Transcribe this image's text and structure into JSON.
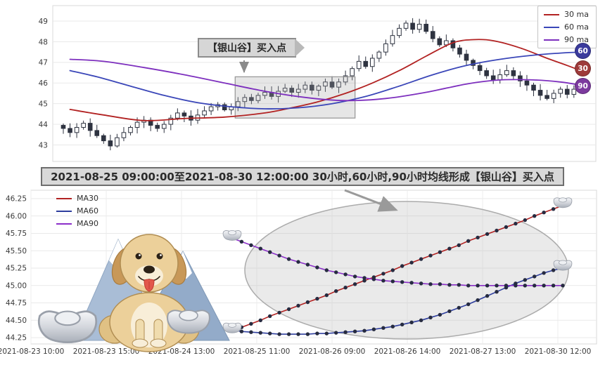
{
  "banner": {
    "text": "2021-08-25 09:00:00至2021-08-30 12:00:00 30小时,60小时,90小时均线形成【银山谷】买入点"
  },
  "top_chart": {
    "annotation": "【银山谷】买入点",
    "legend": [
      {
        "label": "30 ma",
        "color": "#b22222"
      },
      {
        "label": "60 ma",
        "color": "#3a46b8"
      },
      {
        "label": "90 ma",
        "color": "#7d2fbe"
      }
    ],
    "badges": [
      {
        "label": "60",
        "color": "#3a3a9d"
      },
      {
        "label": "30",
        "color": "#9e3a3a"
      },
      {
        "label": "90",
        "color": "#7c3a9e"
      }
    ]
  },
  "bottom_chart": {
    "legend": [
      {
        "label": "MA30",
        "color": "#b22222"
      },
      {
        "label": "MA60",
        "color": "#2e3e9e"
      },
      {
        "label": "MA90",
        "color": "#8b2fc9"
      }
    ]
  },
  "chart_data": [
    {
      "type": "candlestick",
      "panel": "top",
      "title": "",
      "yticks": [
        49,
        48,
        47,
        46,
        45,
        44,
        43
      ],
      "ylim": [
        42.2,
        49.75
      ],
      "grid": true,
      "legend_position": "upper-right",
      "candle_color_up": "#ffffff",
      "candle_color_down": "#2e3340",
      "closes": [
        43.8,
        43.6,
        43.85,
        44.05,
        43.7,
        43.45,
        43.2,
        42.95,
        43.35,
        43.6,
        43.85,
        44.1,
        44.2,
        43.95,
        43.8,
        44.0,
        44.3,
        44.55,
        44.4,
        44.2,
        44.45,
        44.65,
        44.85,
        44.95,
        44.7,
        44.85,
        45.1,
        45.3,
        45.15,
        45.4,
        45.55,
        45.35,
        45.6,
        45.75,
        45.55,
        45.7,
        45.9,
        45.65,
        45.85,
        46.05,
        45.8,
        46.05,
        46.35,
        46.7,
        47.05,
        46.8,
        47.2,
        47.5,
        47.9,
        48.3,
        48.65,
        48.9,
        48.6,
        48.85,
        48.5,
        48.15,
        47.85,
        48.05,
        47.7,
        47.4,
        47.1,
        46.85,
        46.6,
        46.35,
        46.15,
        46.4,
        46.6,
        46.35,
        46.1,
        45.9,
        45.65,
        45.4,
        45.25,
        45.5,
        45.7,
        45.45,
        45.7,
        45.95
      ],
      "ma_series": [
        {
          "name": "30 ma",
          "color": "#b22222",
          "points": [
            [
              1,
              44.72
            ],
            [
              6,
              44.45
            ],
            [
              12,
              44.18
            ],
            [
              18,
              44.28
            ],
            [
              24,
              44.35
            ],
            [
              30,
              44.55
            ],
            [
              34,
              44.8
            ],
            [
              38,
              45.1
            ],
            [
              42,
              45.5
            ],
            [
              46,
              46.0
            ],
            [
              50,
              46.6
            ],
            [
              54,
              47.3
            ],
            [
              58,
              47.95
            ],
            [
              61,
              48.1
            ],
            [
              64,
              48.05
            ],
            [
              68,
              47.7
            ],
            [
              72,
              47.2
            ],
            [
              75,
              46.85
            ],
            [
              77,
              46.6
            ]
          ]
        },
        {
          "name": "60 ma",
          "color": "#3a46b8",
          "points": [
            [
              1,
              46.6
            ],
            [
              5,
              46.3
            ],
            [
              10,
              45.85
            ],
            [
              15,
              45.4
            ],
            [
              20,
              45.05
            ],
            [
              25,
              44.85
            ],
            [
              30,
              44.75
            ],
            [
              35,
              44.8
            ],
            [
              40,
              45.0
            ],
            [
              45,
              45.35
            ],
            [
              50,
              45.85
            ],
            [
              55,
              46.4
            ],
            [
              60,
              46.85
            ],
            [
              65,
              47.15
            ],
            [
              70,
              47.35
            ],
            [
              74,
              47.45
            ],
            [
              77,
              47.5
            ]
          ]
        },
        {
          "name": "90 ma",
          "color": "#7d2fbe",
          "points": [
            [
              1,
              47.15
            ],
            [
              6,
              47.05
            ],
            [
              12,
              46.75
            ],
            [
              18,
              46.4
            ],
            [
              24,
              46.0
            ],
            [
              30,
              45.6
            ],
            [
              36,
              45.3
            ],
            [
              42,
              45.15
            ],
            [
              48,
              45.25
            ],
            [
              54,
              45.55
            ],
            [
              60,
              45.95
            ],
            [
              65,
              46.15
            ],
            [
              70,
              46.15
            ],
            [
              74,
              46.05
            ],
            [
              77,
              45.9
            ]
          ]
        }
      ],
      "highlight_box": {
        "i_start": 26,
        "i_end": 43,
        "v_top": 46.3,
        "v_bottom": 44.3
      },
      "annotation": "【银山谷】买入点",
      "end_badges": [
        "60",
        "30",
        "90"
      ]
    },
    {
      "type": "line",
      "panel": "bottom",
      "title": "",
      "grid": true,
      "legend_position": "upper-left",
      "yticks": [
        "46.25",
        "46.00",
        "45.75",
        "45.50",
        "45.25",
        "45.00",
        "44.75",
        "44.50",
        "44.25"
      ],
      "ylim": [
        44.16,
        46.37
      ],
      "x_tick_labels": [
        "2021-08-23 10:00",
        "2021-08-23 15:00",
        "2021-08-24 13:00",
        "2021-08-25 11:00",
        "2021-08-26 09:00",
        "2021-08-26 14:00",
        "2021-08-27 13:00",
        "2021-08-30 12:00"
      ],
      "marker_color": "#262b40",
      "series": [
        {
          "name": "MA30",
          "color": "#b22222",
          "values": [
            44.35,
            44.4,
            44.45,
            44.5,
            44.56,
            44.61,
            44.66,
            44.71,
            44.76,
            44.81,
            44.86,
            44.92,
            44.97,
            45.02,
            45.07,
            45.12,
            45.17,
            45.22,
            45.28,
            45.33,
            45.38,
            45.43,
            45.48,
            45.53,
            45.58,
            45.64,
            45.69,
            45.74,
            45.79,
            45.84,
            45.89,
            45.94,
            46.0,
            46.05,
            46.1,
            46.15
          ]
        },
        {
          "name": "MA60",
          "color": "#2e3e9e",
          "values": [
            44.36,
            44.34,
            44.33,
            44.32,
            44.31,
            44.3,
            44.3,
            44.3,
            44.3,
            44.31,
            44.31,
            44.32,
            44.33,
            44.34,
            44.35,
            44.37,
            44.39,
            44.41,
            44.44,
            44.47,
            44.5,
            44.54,
            44.58,
            44.63,
            44.68,
            44.73,
            44.79,
            44.85,
            44.91,
            44.97,
            45.03,
            45.08,
            45.13,
            45.18,
            45.22,
            45.25
          ]
        },
        {
          "name": "MA90",
          "color": "#8b2fc9",
          "values": [
            45.68,
            45.63,
            45.58,
            45.53,
            45.48,
            45.43,
            45.38,
            45.34,
            45.3,
            45.26,
            45.22,
            45.19,
            45.16,
            45.13,
            45.11,
            45.09,
            45.07,
            45.06,
            45.05,
            45.04,
            45.03,
            45.02,
            45.02,
            45.01,
            45.01,
            45.0,
            45.0,
            45.0,
            45.0,
            45.0,
            45.0,
            45.0,
            45.0,
            45.0,
            45.0,
            45.0
          ]
        }
      ],
      "ingot_markers": [
        {
          "series": "MA90",
          "position": "first"
        },
        {
          "series": "MA30",
          "position": "first"
        },
        {
          "series": "MA30",
          "position": "last"
        },
        {
          "series": "MA60",
          "position": "last"
        }
      ]
    }
  ]
}
